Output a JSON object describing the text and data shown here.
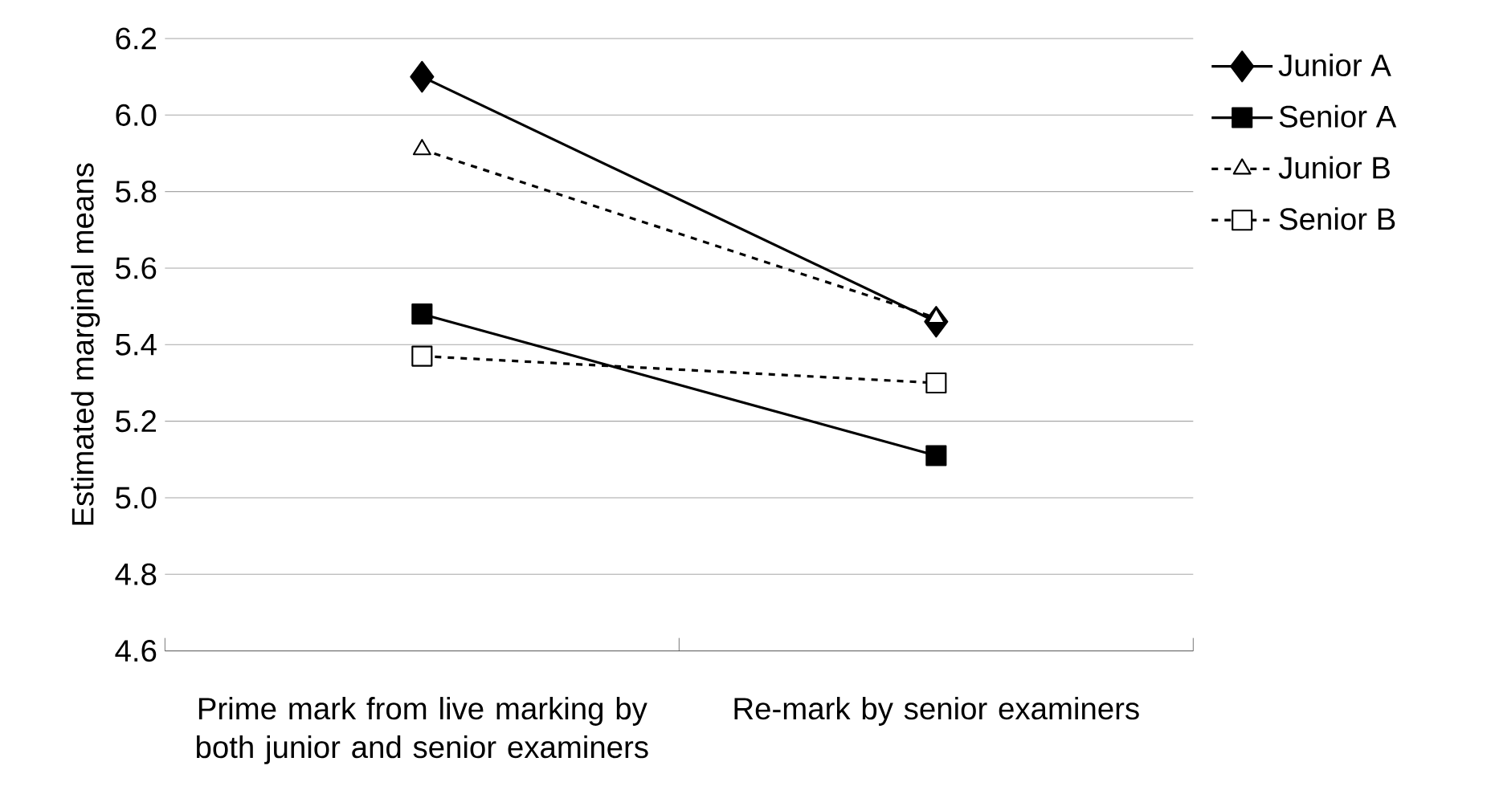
{
  "chart_data": {
    "type": "line",
    "ylabel": "Estimated marginal means",
    "categories": [
      "Prime mark from live marking by both junior and senior examiners",
      "Re-mark by senior examiners"
    ],
    "ylim": [
      4.6,
      6.2
    ],
    "yticks": [
      {
        "value": 4.6,
        "label": "4.6"
      },
      {
        "value": 4.8,
        "label": "4.8"
      },
      {
        "value": 5.0,
        "label": "5.0"
      },
      {
        "value": 5.2,
        "label": "5.2"
      },
      {
        "value": 5.4,
        "label": "5.4"
      },
      {
        "value": 5.6,
        "label": "5.6"
      },
      {
        "value": 5.8,
        "label": "5.8"
      },
      {
        "value": 6.0,
        "label": "6.0"
      },
      {
        "value": 6.2,
        "label": "6.2"
      }
    ],
    "grid": "y",
    "legend": "right",
    "series": [
      {
        "name": "Junior A",
        "color": "#000000",
        "values": [
          6.1,
          5.46
        ],
        "marker": "diamond",
        "line_style": "solid"
      },
      {
        "name": "Senior A",
        "color": "#000000",
        "values": [
          5.48,
          5.11
        ],
        "marker": "square",
        "line_style": "solid"
      },
      {
        "name": "Junior B",
        "color": "#000000",
        "values": [
          5.91,
          5.47
        ],
        "marker": "triangle",
        "line_style": "dashed"
      },
      {
        "name": "Senior B",
        "color": "#000000",
        "values": [
          5.37,
          5.3
        ],
        "marker": "square",
        "line_style": "dashed"
      }
    ]
  }
}
